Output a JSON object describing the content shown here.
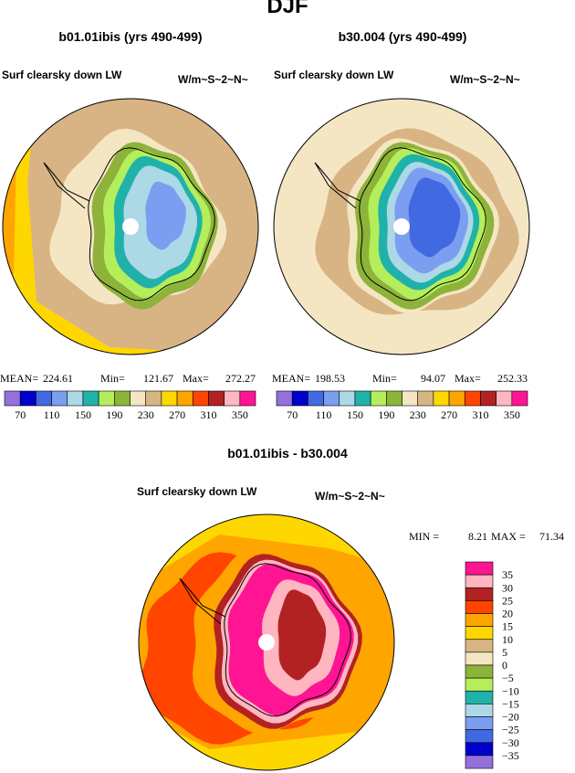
{
  "title": "DJF",
  "panels": [
    {
      "title": "b01.01ibis (yrs 490-499)",
      "variable": "Surf clearsky down LW",
      "units": "W/m~S~2~N~",
      "stats": [
        {
          "label": "MEAN=",
          "value": "224.61"
        },
        {
          "label": "Min=",
          "value": "121.67"
        },
        {
          "label": "Max=",
          "value": "272.27"
        }
      ],
      "colorbar": [
        70,
        110,
        150,
        190,
        230,
        270,
        310,
        350
      ]
    },
    {
      "title": "b30.004 (yrs 490-499)",
      "variable": "Surf clearsky down LW",
      "units": "W/m~S~2~N~",
      "stats": [
        {
          "label": "MEAN=",
          "value": "198.53"
        },
        {
          "label": "Min=",
          "value": "94.07"
        },
        {
          "label": "Max=",
          "value": "252.33"
        }
      ],
      "colorbar": [
        70,
        110,
        150,
        190,
        230,
        270,
        310,
        350
      ]
    }
  ],
  "difference": {
    "title": "b01.01ibis - b30.004",
    "variable": "Surf clearsky down LW",
    "units": "W/m~S~2~N~",
    "stats": [
      {
        "label": "MIN =",
        "value": "8.21"
      },
      {
        "label": "MAX =",
        "value": "71.34"
      }
    ],
    "colorbar": [
      "35",
      "30",
      "25",
      "20",
      "15",
      "10",
      "5",
      "0",
      "−5",
      "−10",
      "−15",
      "−20",
      "−25",
      "−30",
      "−35"
    ]
  }
}
